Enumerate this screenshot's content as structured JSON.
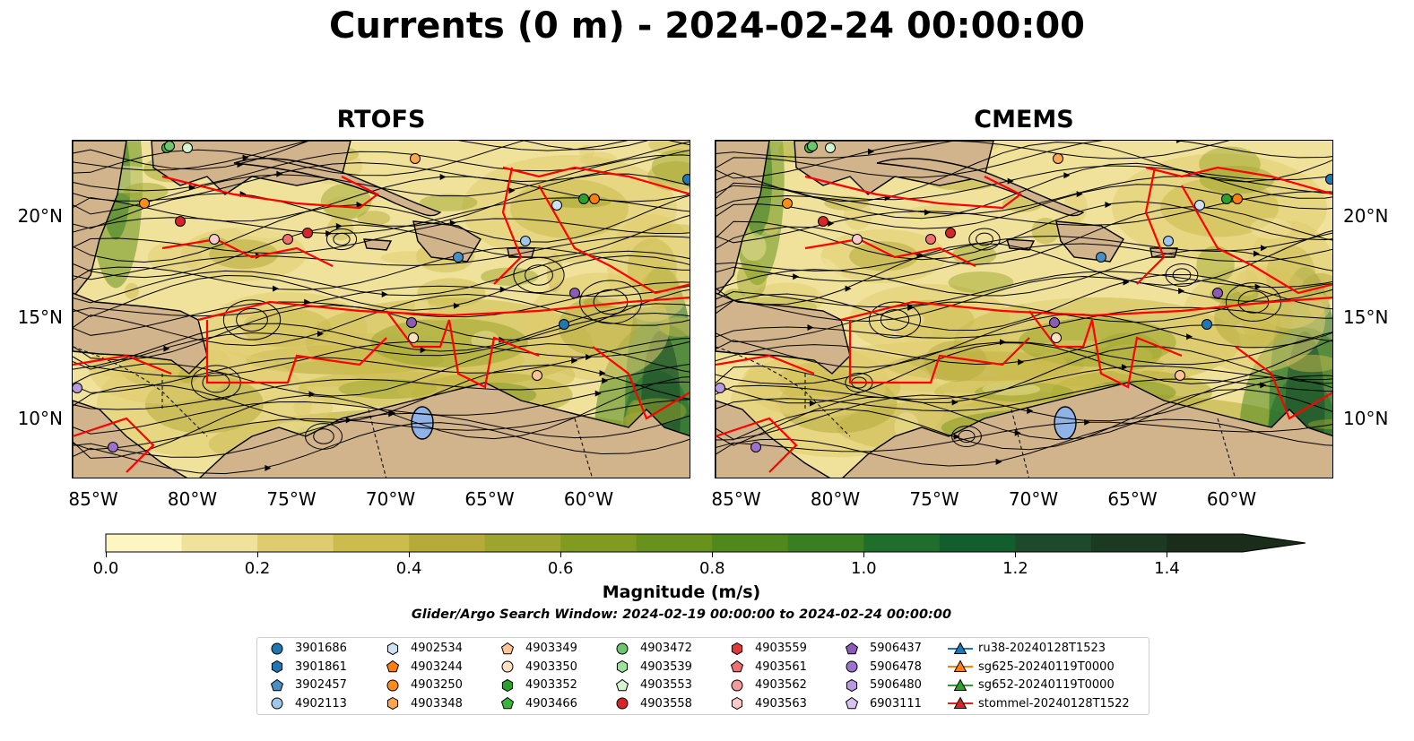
{
  "title": "Currents (0 m) - 2024-02-24 00:00:00",
  "panels": [
    {
      "title": "RTOFS"
    },
    {
      "title": "CMEMS"
    }
  ],
  "lat_labels": [
    "20°N",
    "15°N",
    "10°N"
  ],
  "lon_labels": [
    "85°W",
    "80°W",
    "75°W",
    "70°W",
    "65°W",
    "60°W"
  ],
  "colorbar": {
    "label": "Magnitude (m/s)",
    "ticks": [
      "0.0",
      "0.2",
      "0.4",
      "0.6",
      "0.8",
      "1.0",
      "1.2",
      "1.4"
    ],
    "min": 0.0,
    "max": 1.5,
    "extend": "max",
    "colors": [
      "#fdf6c3",
      "#f0e29a",
      "#e0cc70",
      "#ccbc4e",
      "#b6ab3a",
      "#9da52c",
      "#819b22",
      "#68921d",
      "#4f881c",
      "#3a7e22",
      "#1f6e2c",
      "#135e2e",
      "#1c4a2a",
      "#1c3a22",
      "#1a2c1a"
    ]
  },
  "search_window": "Glider/Argo Search Window: 2024-02-19 00:00:00 to 2024-02-24 00:00:00",
  "land_color": "#d2b48c",
  "track_color": "#ff0000",
  "legend": [
    {
      "label": "3901686",
      "marker": "circle",
      "color": "#1f77b4"
    },
    {
      "label": "3901861",
      "marker": "hexagon",
      "color": "#1f77b4"
    },
    {
      "label": "3902457",
      "marker": "pentagon",
      "color": "#4a8fc4"
    },
    {
      "label": "4902113",
      "marker": "circle",
      "color": "#9ec7ea"
    },
    {
      "label": "4902534",
      "marker": "hexagon",
      "color": "#cde3f5"
    },
    {
      "label": "4903244",
      "marker": "pentagon",
      "color": "#ff7f0e"
    },
    {
      "label": "4903250",
      "marker": "circle",
      "color": "#ff8c1a"
    },
    {
      "label": "4903348",
      "marker": "hexagon",
      "color": "#ffa54f"
    },
    {
      "label": "4903349",
      "marker": "pentagon",
      "color": "#ffc596"
    },
    {
      "label": "4903350",
      "marker": "circle",
      "color": "#ffe0c2"
    },
    {
      "label": "4903352",
      "marker": "hexagon",
      "color": "#2ca02c"
    },
    {
      "label": "4903466",
      "marker": "pentagon",
      "color": "#3cb43c"
    },
    {
      "label": "4903472",
      "marker": "circle",
      "color": "#6cc76c"
    },
    {
      "label": "4903539",
      "marker": "hexagon",
      "color": "#9be39b"
    },
    {
      "label": "4903553",
      "marker": "pentagon",
      "color": "#d4f5cf"
    },
    {
      "label": "4903558",
      "marker": "circle",
      "color": "#d62728"
    },
    {
      "label": "4903559",
      "marker": "hexagon",
      "color": "#e0393b"
    },
    {
      "label": "4903561",
      "marker": "pentagon",
      "color": "#ef6f6f"
    },
    {
      "label": "4903562",
      "marker": "circle",
      "color": "#f49a9a"
    },
    {
      "label": "4903563",
      "marker": "hexagon",
      "color": "#fbcaca"
    },
    {
      "label": "5906437",
      "marker": "pentagon",
      "color": "#8a5cb8"
    },
    {
      "label": "5906478",
      "marker": "circle",
      "color": "#9c72cc"
    },
    {
      "label": "5906480",
      "marker": "hexagon",
      "color": "#b89ae0"
    },
    {
      "label": "6903111",
      "marker": "pentagon",
      "color": "#d6c3f2"
    },
    {
      "label": "ru38-20240128T1523",
      "marker": "triangle-line",
      "color": "#1f77b4"
    },
    {
      "label": "sg625-20240119T0000",
      "marker": "triangle-line",
      "color": "#ff7f0e"
    },
    {
      "label": "sg652-20240119T0000",
      "marker": "triangle-line",
      "color": "#2ca02c"
    },
    {
      "label": "stommel-20240128T1522",
      "marker": "triangle-line",
      "color": "#d62728"
    }
  ]
}
